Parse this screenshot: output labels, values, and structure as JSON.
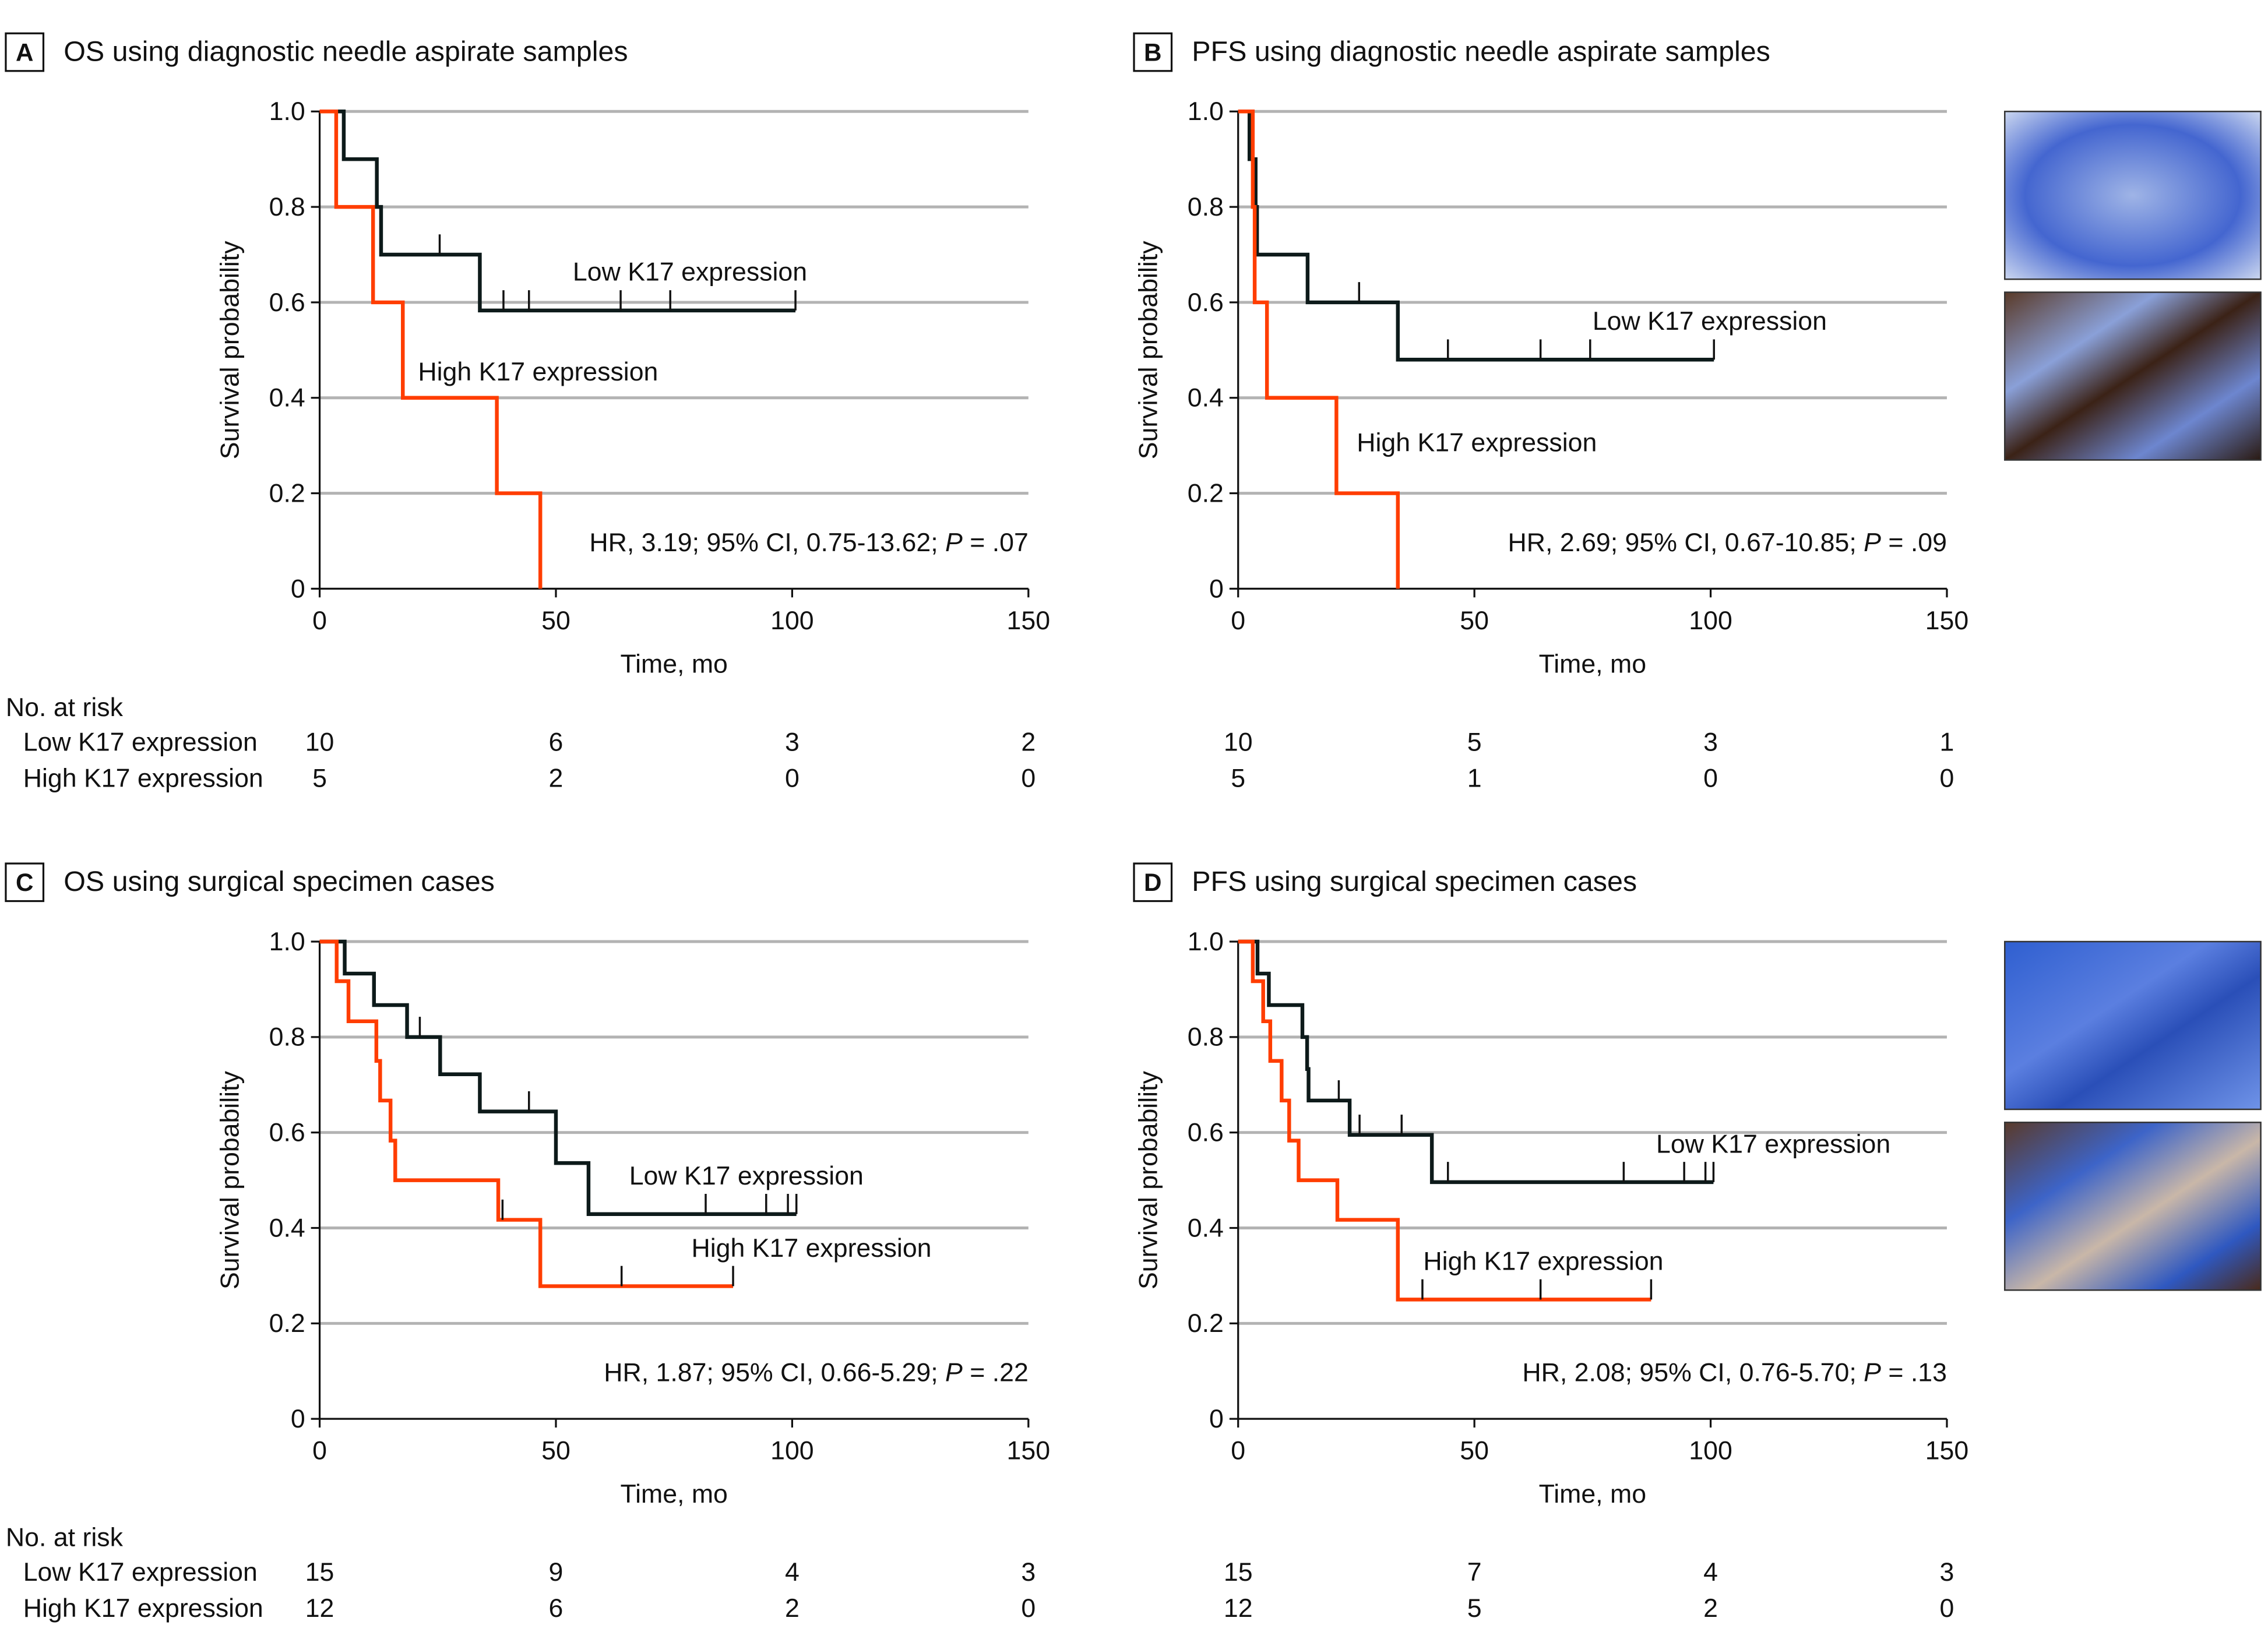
{
  "colors": {
    "low": "#0d1a1a",
    "high": "#ff3d00",
    "grid": "#b3b3b3"
  },
  "chart_data": [
    {
      "type": "line",
      "letter": "A",
      "title": "OS using diagnostic needle aspirate samples",
      "ylabel": "Survival probability",
      "xlabel": "Time, mo",
      "xlim": [
        0,
        150
      ],
      "ylim": [
        0,
        1
      ],
      "grid": true,
      "xticks": [
        "0",
        "50",
        "100",
        "150"
      ],
      "yticks": [
        "1.0",
        "0.8",
        "0.6",
        "0.4",
        "0.2",
        "0"
      ],
      "xtick_values": [
        0,
        50,
        100,
        150
      ],
      "ytick_values": [
        1,
        0.8,
        0.6,
        0.4,
        0.2,
        0
      ],
      "hr_text": "HR, 3.19; 95% CI, 0.75-13.62; ",
      "p_label": "P",
      "p_value": " = .07",
      "series": [
        {
          "name": "Low K17 expression",
          "color": "#0d1a1a",
          "steps": [
            [
              0,
              1
            ],
            [
              5.1,
              0.9
            ],
            [
              12.1,
              0.8
            ],
            [
              13,
              0.7
            ],
            [
              33.9,
              0.583
            ]
          ],
          "end": 100.7,
          "censored": [
            25.4,
            38.9,
            44.3,
            63.7,
            74.2,
            100.7
          ]
        },
        {
          "name": "High K17 expression",
          "color": "#ff3d00",
          "steps": [
            [
              0,
              1
            ],
            [
              3.5,
              0.8
            ],
            [
              11.3,
              0.6
            ],
            [
              17.6,
              0.4
            ],
            [
              37.5,
              0.2
            ],
            [
              46.7,
              0
            ]
          ],
          "end": 46.7,
          "censored": []
        }
      ],
      "at_risk": {
        "header": "No. at risk",
        "rows": [
          {
            "label": "Low K17 expression",
            "values": [
              "10",
              "6",
              "3",
              "2"
            ]
          },
          {
            "label": "High K17 expression",
            "values": [
              "5",
              "2",
              "0",
              "0"
            ]
          }
        ]
      }
    },
    {
      "type": "line",
      "letter": "B",
      "title": "PFS using diagnostic needle aspirate samples",
      "ylabel": "Survival probability",
      "xlabel": "Time, mo",
      "xlim": [
        0,
        150
      ],
      "ylim": [
        0,
        1
      ],
      "grid": true,
      "xticks": [
        "0",
        "50",
        "100",
        "150"
      ],
      "yticks": [
        "1.0",
        "0.8",
        "0.6",
        "0.4",
        "0.2",
        "0"
      ],
      "xtick_values": [
        0,
        50,
        100,
        150
      ],
      "ytick_values": [
        1,
        0.8,
        0.6,
        0.4,
        0.2,
        0
      ],
      "hr_text": "HR, 2.69; 95% CI, 0.67-10.85; ",
      "p_label": "P",
      "p_value": " = .09",
      "series": [
        {
          "name": "Low K17 expression",
          "color": "#0d1a1a",
          "steps": [
            [
              0,
              1
            ],
            [
              2.4,
              0.9
            ],
            [
              3.7,
              0.8
            ],
            [
              4,
              0.7
            ],
            [
              14.7,
              0.6
            ],
            [
              33.8,
              0.48
            ]
          ],
          "end": 100.7,
          "censored": [
            25.6,
            44.4,
            64,
            74.5,
            100.7
          ]
        },
        {
          "name": "High K17 expression",
          "color": "#ff3d00",
          "steps": [
            [
              0,
              1
            ],
            [
              3.1,
              0.8
            ],
            [
              3.5,
              0.6
            ],
            [
              6.1,
              0.4
            ],
            [
              20.8,
              0.2
            ],
            [
              33.8,
              0
            ]
          ],
          "end": 33.8,
          "censored": []
        }
      ],
      "at_risk": {
        "header": "",
        "rows": [
          {
            "label": "",
            "values": [
              "10",
              "5",
              "3",
              "1"
            ]
          },
          {
            "label": "",
            "values": [
              "5",
              "1",
              "0",
              "0"
            ]
          }
        ]
      }
    },
    {
      "type": "line",
      "letter": "C",
      "title": "OS using surgical specimen cases",
      "ylabel": "Survival probability",
      "xlabel": "Time, mo",
      "xlim": [
        0,
        150
      ],
      "ylim": [
        0,
        1
      ],
      "grid": true,
      "xticks": [
        "0",
        "50",
        "100",
        "150"
      ],
      "yticks": [
        "1.0",
        "0.8",
        "0.6",
        "0.4",
        "0.2",
        "0"
      ],
      "xtick_values": [
        0,
        50,
        100,
        150
      ],
      "ytick_values": [
        1,
        0.8,
        0.6,
        0.4,
        0.2,
        0
      ],
      "hr_text": "HR, 1.87; 95% CI, 0.66-5.29; ",
      "p_label": "P",
      "p_value": " = .22",
      "series": [
        {
          "name": "Low K17 expression",
          "color": "#0d1a1a",
          "steps": [
            [
              0,
              1
            ],
            [
              5.3,
              0.933
            ],
            [
              11.5,
              0.867
            ],
            [
              18.5,
              0.8
            ],
            [
              25.5,
              0.722
            ],
            [
              33.9,
              0.644
            ],
            [
              50,
              0.536
            ],
            [
              56.9,
              0.429
            ]
          ],
          "end": 100.9,
          "censored": [
            21.2,
            44.3,
            81.7,
            94.5,
            99.1,
            100.9
          ]
        },
        {
          "name": "High K17 expression",
          "color": "#ff3d00",
          "steps": [
            [
              0,
              1
            ],
            [
              3.6,
              0.917
            ],
            [
              6.1,
              0.833
            ],
            [
              12,
              0.75
            ],
            [
              12.8,
              0.667
            ],
            [
              15,
              0.583
            ],
            [
              16,
              0.5
            ],
            [
              37.8,
              0.417
            ],
            [
              46.7,
              0.278
            ]
          ],
          "end": 87.5,
          "censored": [
            38.7,
            63.9,
            87.5
          ]
        }
      ],
      "at_risk": {
        "header": "No. at risk",
        "rows": [
          {
            "label": "Low K17 expression",
            "values": [
              "15",
              "9",
              "4",
              "3"
            ]
          },
          {
            "label": "High K17 expression",
            "values": [
              "12",
              "6",
              "2",
              "0"
            ]
          }
        ]
      }
    },
    {
      "type": "line",
      "letter": "D",
      "title": "PFS using surgical specimen cases",
      "ylabel": "Survival probability",
      "xlabel": "Time, mo",
      "xlim": [
        0,
        150
      ],
      "ylim": [
        0,
        1
      ],
      "grid": true,
      "xticks": [
        "0",
        "50",
        "100",
        "150"
      ],
      "yticks": [
        "1.0",
        "0.8",
        "0.6",
        "0.4",
        "0.2",
        "0"
      ],
      "xtick_values": [
        0,
        50,
        100,
        150
      ],
      "ytick_values": [
        1,
        0.8,
        0.6,
        0.4,
        0.2,
        0
      ],
      "hr_text": "HR, 2.08; 95% CI, 0.76-5.70; ",
      "p_label": "P",
      "p_value": " = .13",
      "series": [
        {
          "name": "Low K17 expression",
          "color": "#0d1a1a",
          "steps": [
            [
              0,
              1
            ],
            [
              4.1,
              0.933
            ],
            [
              6.5,
              0.867
            ],
            [
              13.6,
              0.8
            ],
            [
              14.6,
              0.733
            ],
            [
              14.9,
              0.667
            ],
            [
              23.6,
              0.595
            ],
            [
              41,
              0.496
            ]
          ],
          "end": 100.6,
          "censored": [
            21.3,
            25.7,
            34.6,
            44.4,
            81.6,
            94.4,
            98.9,
            100.6
          ]
        },
        {
          "name": "High K17 expression",
          "color": "#ff3d00",
          "steps": [
            [
              0,
              1
            ],
            [
              3.1,
              0.917
            ],
            [
              5.3,
              0.833
            ],
            [
              6.8,
              0.75
            ],
            [
              9.2,
              0.667
            ],
            [
              10.8,
              0.583
            ],
            [
              12.8,
              0.5
            ],
            [
              21,
              0.417
            ],
            [
              33.8,
              0.25
            ]
          ],
          "end": 87.4,
          "censored": [
            39,
            64,
            87.4
          ]
        }
      ],
      "at_risk": {
        "header": "",
        "rows": [
          {
            "label": "",
            "values": [
              "15",
              "7",
              "4",
              "3"
            ]
          },
          {
            "label": "",
            "values": [
              "12",
              "5",
              "2",
              "0"
            ]
          }
        ]
      }
    }
  ]
}
